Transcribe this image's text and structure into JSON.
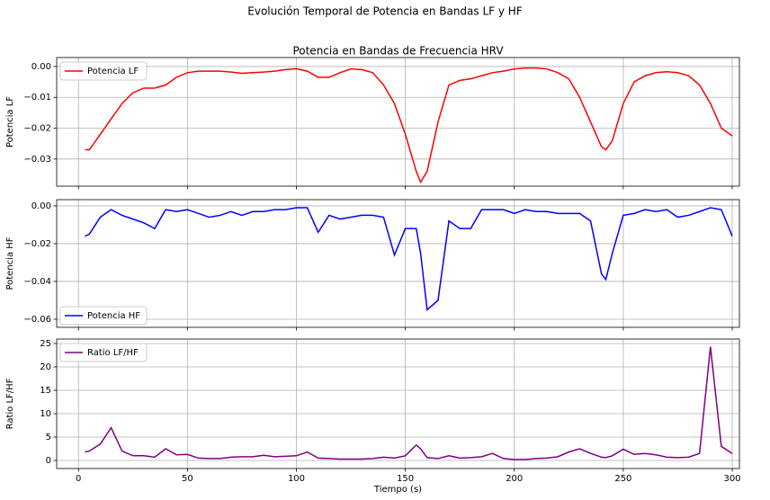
{
  "title": "Evolución Temporal de Potencia en Bandas LF y HF",
  "chart_data": [
    {
      "type": "line",
      "title": "Potencia en Bandas de Frecuencia HRV",
      "y_label": "Potencia LF",
      "x": [
        3,
        5,
        10,
        15,
        20,
        25,
        30,
        35,
        40,
        45,
        50,
        55,
        60,
        65,
        70,
        75,
        80,
        85,
        90,
        95,
        100,
        105,
        110,
        115,
        120,
        125,
        130,
        135,
        140,
        145,
        150,
        155,
        157,
        160,
        165,
        170,
        175,
        180,
        185,
        190,
        195,
        200,
        205,
        210,
        215,
        220,
        225,
        230,
        235,
        240,
        242,
        245,
        250,
        255,
        260,
        265,
        270,
        275,
        280,
        285,
        290,
        295,
        300
      ],
      "series": [
        {
          "name": "Potencia LF",
          "color": "#ff0000",
          "values": [
            -0.027,
            -0.027,
            -0.022,
            -0.017,
            -0.012,
            -0.0085,
            -0.007,
            -0.007,
            -0.006,
            -0.0035,
            -0.002,
            -0.0015,
            -0.0015,
            -0.0015,
            -0.0018,
            -0.0022,
            -0.002,
            -0.0018,
            -0.0015,
            -0.001,
            -0.0007,
            -0.0015,
            -0.0035,
            -0.0035,
            -0.002,
            -0.0008,
            -0.001,
            -0.002,
            -0.006,
            -0.012,
            -0.022,
            -0.034,
            -0.0375,
            -0.034,
            -0.018,
            -0.006,
            -0.0045,
            -0.004,
            -0.003,
            -0.002,
            -0.0015,
            -0.0008,
            -0.0005,
            -0.0005,
            -0.0008,
            -0.002,
            -0.004,
            -0.01,
            -0.018,
            -0.026,
            -0.027,
            -0.024,
            -0.012,
            -0.005,
            -0.003,
            -0.002,
            -0.0017,
            -0.002,
            -0.003,
            -0.006,
            -0.012,
            -0.02,
            -0.0225
          ]
        }
      ],
      "xlim": [
        -10,
        303.3
      ],
      "xticks": [
        0,
        50,
        100,
        150,
        200,
        250,
        300
      ],
      "ylim": [
        -0.0388,
        0.0029
      ],
      "yticks": [
        {
          "value": 0,
          "label": "0.00"
        },
        {
          "value": -0.01,
          "label": "−0.01"
        },
        {
          "value": -0.02,
          "label": "−0.02"
        },
        {
          "value": -0.03,
          "label": "−0.03"
        }
      ],
      "grid": true,
      "legend": "upper-left"
    },
    {
      "type": "line",
      "y_label": "Potencia HF",
      "x": [
        3,
        5,
        10,
        15,
        20,
        25,
        30,
        35,
        40,
        45,
        50,
        55,
        60,
        65,
        70,
        75,
        80,
        85,
        90,
        95,
        100,
        105,
        110,
        115,
        120,
        125,
        130,
        135,
        140,
        145,
        150,
        155,
        157,
        160,
        165,
        170,
        175,
        180,
        185,
        190,
        195,
        200,
        205,
        210,
        215,
        220,
        225,
        230,
        235,
        240,
        242,
        245,
        250,
        255,
        260,
        265,
        270,
        275,
        280,
        285,
        290,
        295,
        300
      ],
      "series": [
        {
          "name": "Potencia HF",
          "color": "#0000ff",
          "values": [
            -0.016,
            -0.015,
            -0.006,
            -0.002,
            -0.005,
            -0.007,
            -0.009,
            -0.012,
            -0.002,
            -0.003,
            -0.002,
            -0.004,
            -0.006,
            -0.005,
            -0.003,
            -0.005,
            -0.003,
            -0.003,
            -0.002,
            -0.002,
            -0.001,
            -0.001,
            -0.014,
            -0.005,
            -0.007,
            -0.006,
            -0.005,
            -0.005,
            -0.006,
            -0.026,
            -0.012,
            -0.012,
            -0.025,
            -0.055,
            -0.05,
            -0.008,
            -0.012,
            -0.012,
            -0.002,
            -0.002,
            -0.002,
            -0.004,
            -0.002,
            -0.003,
            -0.003,
            -0.004,
            -0.004,
            -0.004,
            -0.008,
            -0.036,
            -0.039,
            -0.025,
            -0.005,
            -0.004,
            -0.002,
            -0.003,
            -0.002,
            -0.006,
            -0.005,
            -0.003,
            -0.001,
            -0.002,
            -0.016
          ]
        }
      ],
      "xlim": [
        -10,
        303.3
      ],
      "xticks": [
        0,
        50,
        100,
        150,
        200,
        250,
        300
      ],
      "ylim": [
        -0.0643,
        0.0033
      ],
      "yticks": [
        {
          "value": 0,
          "label": "0.00"
        },
        {
          "value": -0.02,
          "label": "−0.02"
        },
        {
          "value": -0.04,
          "label": "−0.04"
        },
        {
          "value": -0.06,
          "label": "−0.06"
        }
      ],
      "grid": true,
      "legend": "lower-left"
    },
    {
      "type": "line",
      "y_label": "Ratio LF/HF",
      "x_label": "Tiempo (s)",
      "x": [
        3,
        5,
        10,
        15,
        20,
        25,
        30,
        35,
        40,
        45,
        50,
        55,
        60,
        65,
        70,
        75,
        80,
        85,
        90,
        95,
        100,
        105,
        110,
        115,
        120,
        125,
        130,
        135,
        140,
        145,
        150,
        155,
        157,
        160,
        165,
        170,
        175,
        180,
        185,
        190,
        195,
        200,
        205,
        210,
        215,
        220,
        225,
        230,
        235,
        240,
        242,
        245,
        250,
        255,
        260,
        265,
        270,
        275,
        280,
        285,
        290,
        295,
        300
      ],
      "series": [
        {
          "name": "Ratio LF/HF",
          "color": "#800080",
          "values": [
            1.8,
            2,
            3.5,
            7,
            2,
            1,
            1,
            0.7,
            2.5,
            1.2,
            1.3,
            0.5,
            0.4,
            0.4,
            0.7,
            0.8,
            0.8,
            1.1,
            0.8,
            0.9,
            1,
            1.8,
            0.5,
            0.4,
            0.3,
            0.3,
            0.3,
            0.4,
            0.7,
            0.5,
            1,
            3.3,
            2.5,
            0.6,
            0.4,
            1,
            0.5,
            0.6,
            0.8,
            1.5,
            0.4,
            0.2,
            0.2,
            0.4,
            0.5,
            0.8,
            1.8,
            2.5,
            1.5,
            0.7,
            0.6,
            1,
            2.4,
            1.3,
            1.5,
            1.2,
            0.7,
            0.6,
            0.7,
            1.5,
            24.3,
            3,
            1.5
          ]
        }
      ],
      "xlim": [
        -10,
        303.3
      ],
      "xticks": [
        0,
        50,
        100,
        150,
        200,
        250,
        300
      ],
      "ylim": [
        -1.73,
        25.96
      ],
      "yticks": [
        0,
        5,
        10,
        15,
        20,
        25
      ],
      "grid": true,
      "legend": "upper-left",
      "show_x_tick_labels": true
    }
  ]
}
